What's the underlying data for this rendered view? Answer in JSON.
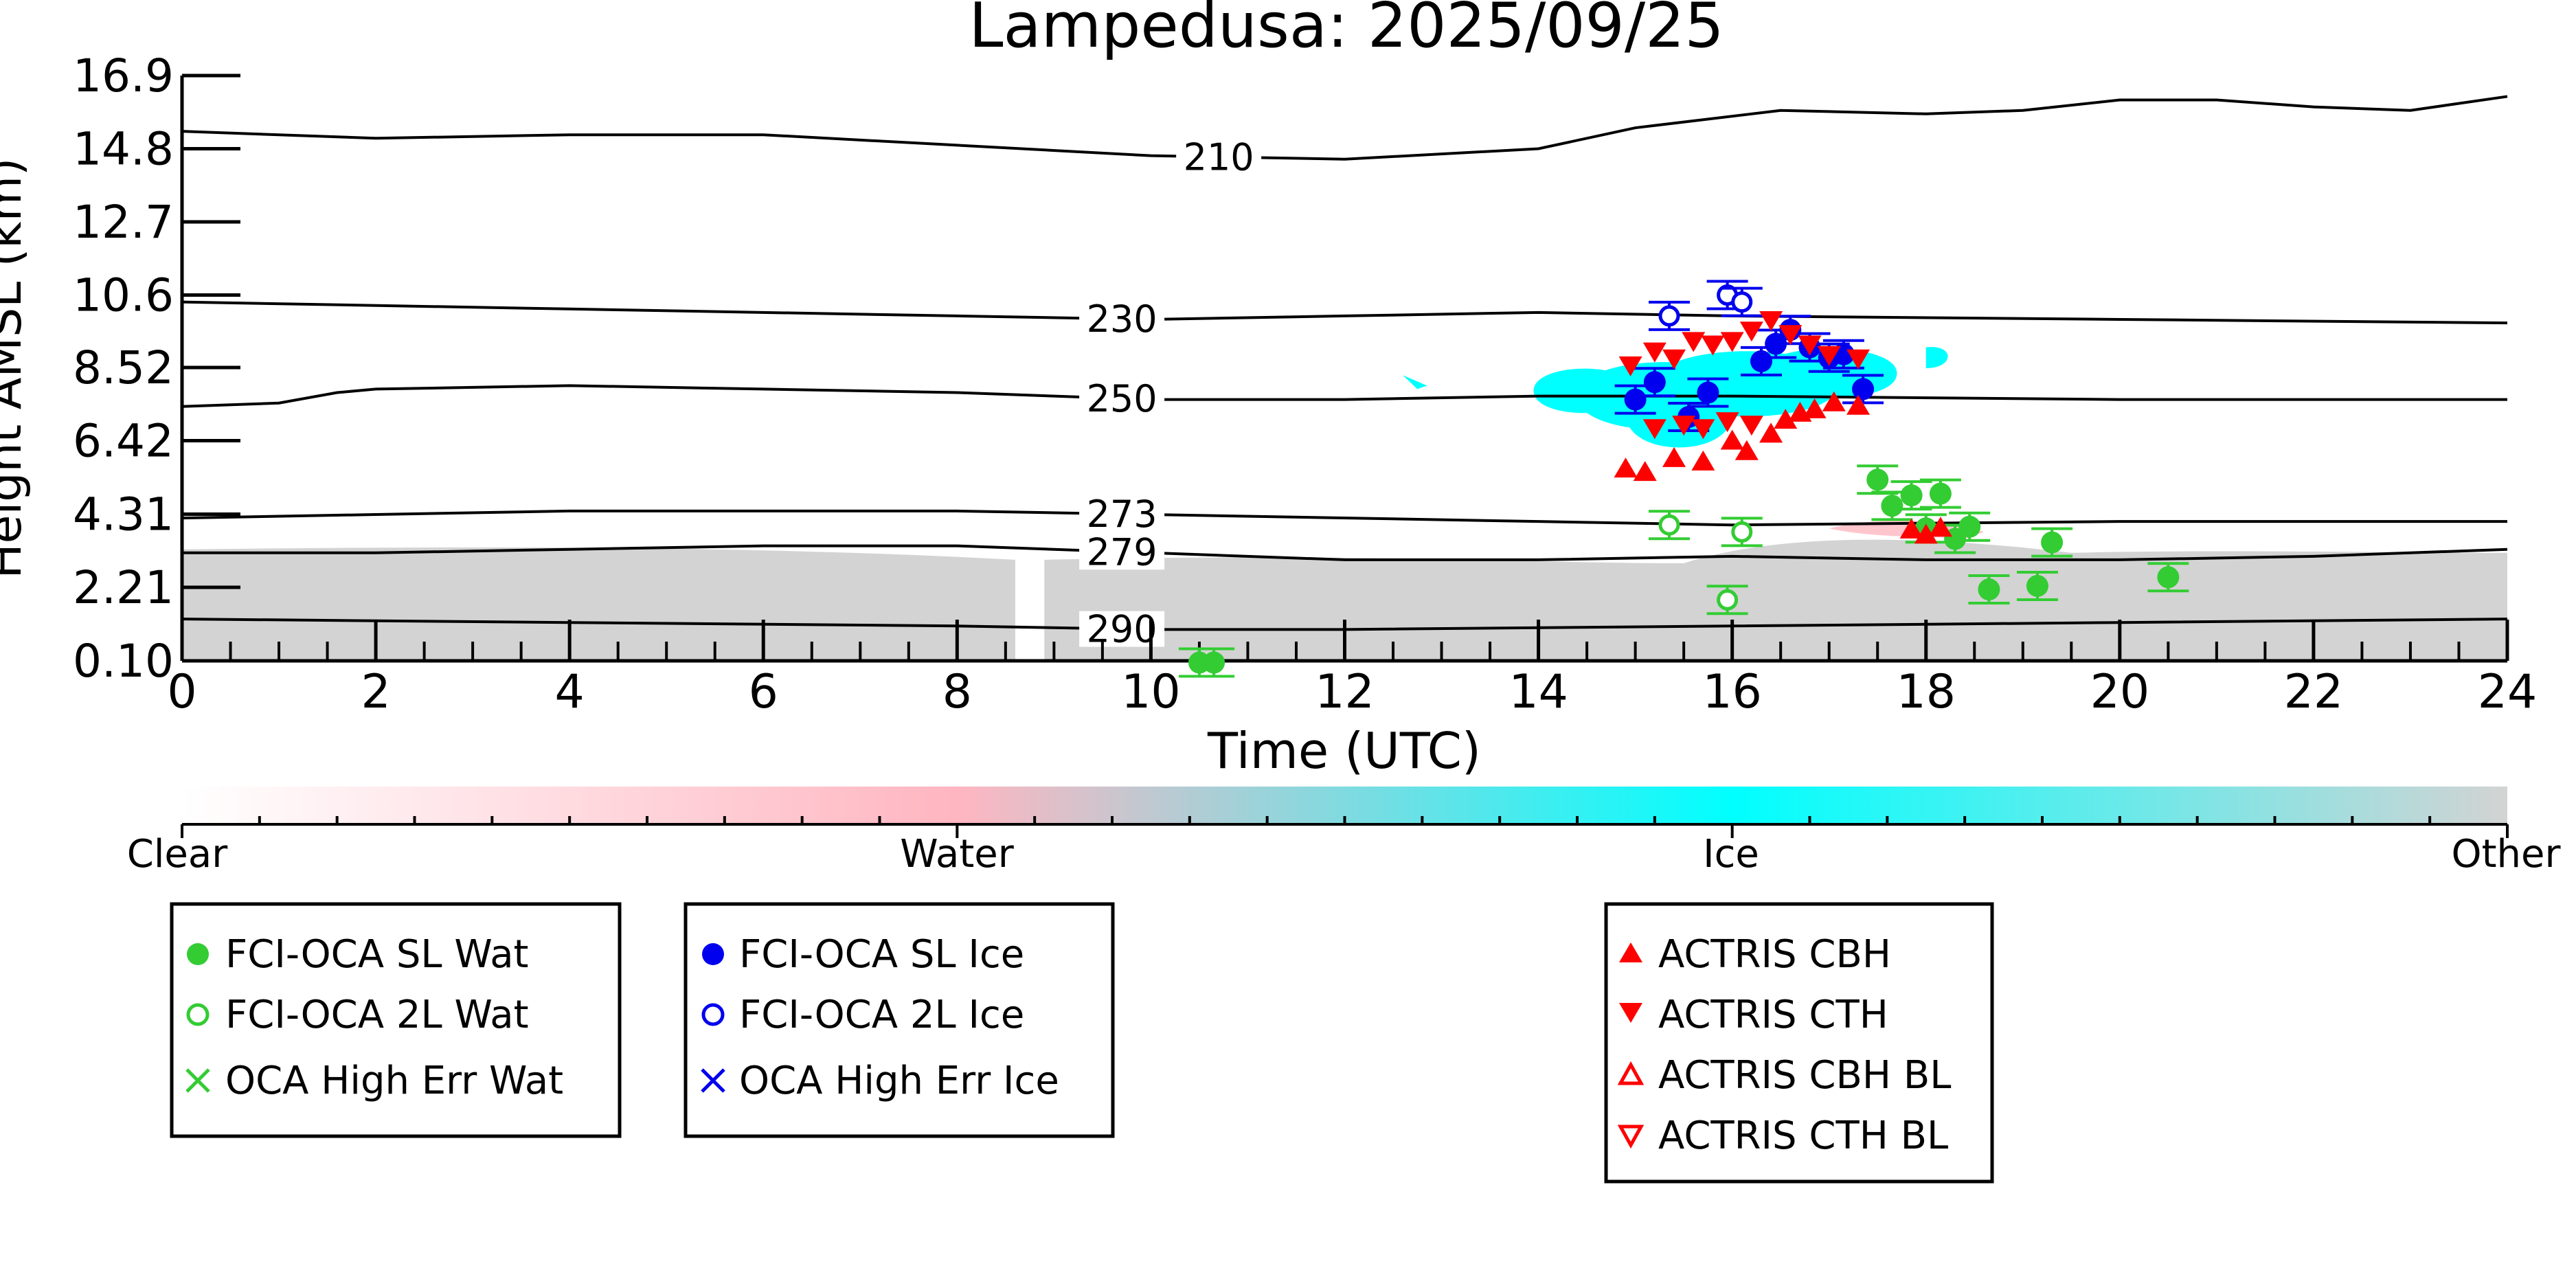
{
  "chart_data": {
    "type": "scatter",
    "title": "Lampedusa: 2025/09/25",
    "xlabel": "Time (UTC)",
    "ylabel": "Height AMSL (km)",
    "xlim": [
      0,
      24
    ],
    "ylim": [
      0.1,
      16.9
    ],
    "x_ticks": [
      0,
      2,
      4,
      6,
      8,
      10,
      12,
      14,
      16,
      18,
      20,
      22,
      24
    ],
    "y_ticks": [
      "0.10",
      "2.21",
      "4.31",
      "6.42",
      "8.52",
      "10.6",
      "12.7",
      "14.8",
      "16.9"
    ],
    "grid": false,
    "colors": {
      "wat": "#33cc33",
      "ice": "#0000ee",
      "actris": "#ff0000",
      "ice_cloud": "#00ffff",
      "other": "#d3d3d3",
      "water_cloud": "#ffb6c1"
    },
    "isotherms": [
      {
        "label": "210",
        "label_x": 10.7,
        "points": [
          [
            0,
            15.3
          ],
          [
            2,
            15.1
          ],
          [
            4,
            15.2
          ],
          [
            6,
            15.2
          ],
          [
            8,
            14.9
          ],
          [
            10,
            14.6
          ],
          [
            12,
            14.5
          ],
          [
            14,
            14.8
          ],
          [
            15,
            15.4
          ],
          [
            16.5,
            15.9
          ],
          [
            18,
            15.8
          ],
          [
            19,
            15.9
          ],
          [
            20,
            16.2
          ],
          [
            21,
            16.2
          ],
          [
            22,
            16.0
          ],
          [
            23,
            15.9
          ],
          [
            24,
            16.3
          ]
        ]
      },
      {
        "label": "230",
        "label_x": 9.7,
        "points": [
          [
            0,
            10.4
          ],
          [
            4,
            10.2
          ],
          [
            8,
            10.0
          ],
          [
            10,
            9.9
          ],
          [
            12,
            10.0
          ],
          [
            14,
            10.1
          ],
          [
            16,
            10.0
          ],
          [
            20,
            9.9
          ],
          [
            24,
            9.8
          ]
        ]
      },
      {
        "label": "250",
        "label_x": 9.7,
        "points": [
          [
            0,
            7.4
          ],
          [
            1,
            7.5
          ],
          [
            1.6,
            7.8
          ],
          [
            2,
            7.9
          ],
          [
            4,
            8.0
          ],
          [
            6,
            7.9
          ],
          [
            8,
            7.8
          ],
          [
            10,
            7.6
          ],
          [
            12,
            7.6
          ],
          [
            14,
            7.7
          ],
          [
            16,
            7.7
          ],
          [
            20,
            7.6
          ],
          [
            24,
            7.6
          ]
        ]
      },
      {
        "label": "273",
        "label_x": 9.7,
        "points": [
          [
            0,
            4.2
          ],
          [
            2,
            4.3
          ],
          [
            4,
            4.4
          ],
          [
            8,
            4.4
          ],
          [
            10,
            4.3
          ],
          [
            14,
            4.1
          ],
          [
            16,
            4.0
          ],
          [
            20,
            4.1
          ],
          [
            24,
            4.1
          ]
        ]
      },
      {
        "label": "279",
        "label_x": 9.7,
        "points": [
          [
            0,
            3.2
          ],
          [
            2,
            3.2
          ],
          [
            4,
            3.3
          ],
          [
            6,
            3.4
          ],
          [
            8,
            3.4
          ],
          [
            10,
            3.2
          ],
          [
            12,
            3.0
          ],
          [
            14,
            3.0
          ],
          [
            16,
            3.1
          ],
          [
            18,
            3.0
          ],
          [
            20,
            3.0
          ],
          [
            22,
            3.1
          ],
          [
            24,
            3.3
          ]
        ]
      },
      {
        "label": "290",
        "label_x": 9.7,
        "points": [
          [
            0,
            1.3
          ],
          [
            4,
            1.2
          ],
          [
            8,
            1.1
          ],
          [
            10,
            1.0
          ],
          [
            12,
            1.0
          ],
          [
            16,
            1.1
          ],
          [
            20,
            1.2
          ],
          [
            24,
            1.3
          ]
        ]
      }
    ],
    "series": [
      {
        "name": "FCI-OCA SL Wat",
        "marker": "filled-circle",
        "color": "#33cc33",
        "points": [
          [
            10.5,
            0.05
          ],
          [
            10.65,
            0.05
          ],
          [
            17.5,
            5.3
          ],
          [
            17.65,
            4.55
          ],
          [
            17.85,
            4.85
          ],
          [
            18.0,
            3.9
          ],
          [
            18.15,
            4.9
          ],
          [
            18.3,
            3.6
          ],
          [
            18.45,
            3.95
          ],
          [
            18.65,
            2.15
          ],
          [
            19.15,
            2.25
          ],
          [
            19.3,
            3.5
          ],
          [
            20.5,
            2.5
          ]
        ]
      },
      {
        "name": "FCI-OCA 2L Wat",
        "marker": "open-circle",
        "color": "#33cc33",
        "points": [
          [
            15.35,
            4.0
          ],
          [
            15.95,
            1.85
          ],
          [
            16.1,
            3.8
          ]
        ]
      },
      {
        "name": "OCA High Err Wat",
        "marker": "x",
        "color": "#33cc33",
        "points": []
      },
      {
        "name": "FCI-OCA SL Ice",
        "marker": "filled-circle",
        "color": "#0000ee",
        "points": [
          [
            15.0,
            7.6
          ],
          [
            15.2,
            8.1
          ],
          [
            15.55,
            7.1
          ],
          [
            15.75,
            7.8
          ],
          [
            16.3,
            8.7
          ],
          [
            16.45,
            9.2
          ],
          [
            16.6,
            9.6
          ],
          [
            16.8,
            9.1
          ],
          [
            17.0,
            8.8
          ],
          [
            17.15,
            8.9
          ],
          [
            17.35,
            7.9
          ]
        ]
      },
      {
        "name": "FCI-OCA 2L Ice",
        "marker": "open-circle",
        "color": "#0000ee",
        "points": [
          [
            15.35,
            10.0
          ],
          [
            15.95,
            10.6
          ],
          [
            16.1,
            10.4
          ]
        ]
      },
      {
        "name": "OCA High Err Ice",
        "marker": "x",
        "color": "#0000ee",
        "points": []
      },
      {
        "name": "ACTRIS CBH",
        "marker": "filled-triangle-up",
        "color": "#ff0000",
        "points": [
          [
            14.9,
            5.6
          ],
          [
            15.1,
            5.5
          ],
          [
            15.4,
            5.9
          ],
          [
            15.7,
            5.8
          ],
          [
            16.0,
            6.4
          ],
          [
            16.15,
            6.1
          ],
          [
            16.4,
            6.6
          ],
          [
            16.55,
            7.0
          ],
          [
            16.7,
            7.2
          ],
          [
            16.85,
            7.3
          ],
          [
            17.05,
            7.5
          ],
          [
            17.3,
            7.4
          ],
          [
            17.85,
            3.85
          ],
          [
            18.0,
            3.7
          ],
          [
            18.15,
            3.9
          ]
        ]
      },
      {
        "name": "ACTRIS CTH",
        "marker": "filled-triangle-down",
        "color": "#ff0000",
        "points": [
          [
            14.95,
            8.6
          ],
          [
            15.2,
            9.0
          ],
          [
            15.4,
            8.8
          ],
          [
            15.6,
            9.3
          ],
          [
            15.8,
            9.2
          ],
          [
            16.0,
            9.3
          ],
          [
            16.2,
            9.6
          ],
          [
            16.4,
            9.9
          ],
          [
            16.6,
            9.5
          ],
          [
            16.8,
            9.2
          ],
          [
            17.0,
            8.9
          ],
          [
            17.3,
            8.8
          ],
          [
            15.2,
            6.8
          ],
          [
            15.5,
            6.9
          ],
          [
            15.7,
            6.8
          ],
          [
            15.95,
            7.0
          ],
          [
            16.2,
            6.9
          ]
        ]
      },
      {
        "name": "ACTRIS CBH BL",
        "marker": "open-triangle-up",
        "color": "#ff0000",
        "points": []
      },
      {
        "name": "ACTRIS CTH BL",
        "marker": "open-triangle-down",
        "color": "#ff0000",
        "points": []
      }
    ],
    "colorbar": {
      "labels": [
        "Clear",
        "Water",
        "Ice",
        "Other"
      ],
      "colors": [
        "#ffffff",
        "#ffb6c1",
        "#00ffff",
        "#d3d3d3"
      ]
    },
    "legends": [
      {
        "position": "bottom-left",
        "entries": [
          "FCI-OCA SL Wat",
          "FCI-OCA 2L Wat",
          "OCA High Err Wat"
        ]
      },
      {
        "position": "bottom-center-left",
        "entries": [
          "FCI-OCA SL Ice",
          "FCI-OCA 2L Ice",
          "OCA High Err Ice"
        ]
      },
      {
        "position": "bottom-center-right",
        "entries": [
          "ACTRIS CBH",
          "ACTRIS CTH",
          "ACTRIS CBH BL",
          "ACTRIS CTH BL"
        ]
      }
    ]
  }
}
